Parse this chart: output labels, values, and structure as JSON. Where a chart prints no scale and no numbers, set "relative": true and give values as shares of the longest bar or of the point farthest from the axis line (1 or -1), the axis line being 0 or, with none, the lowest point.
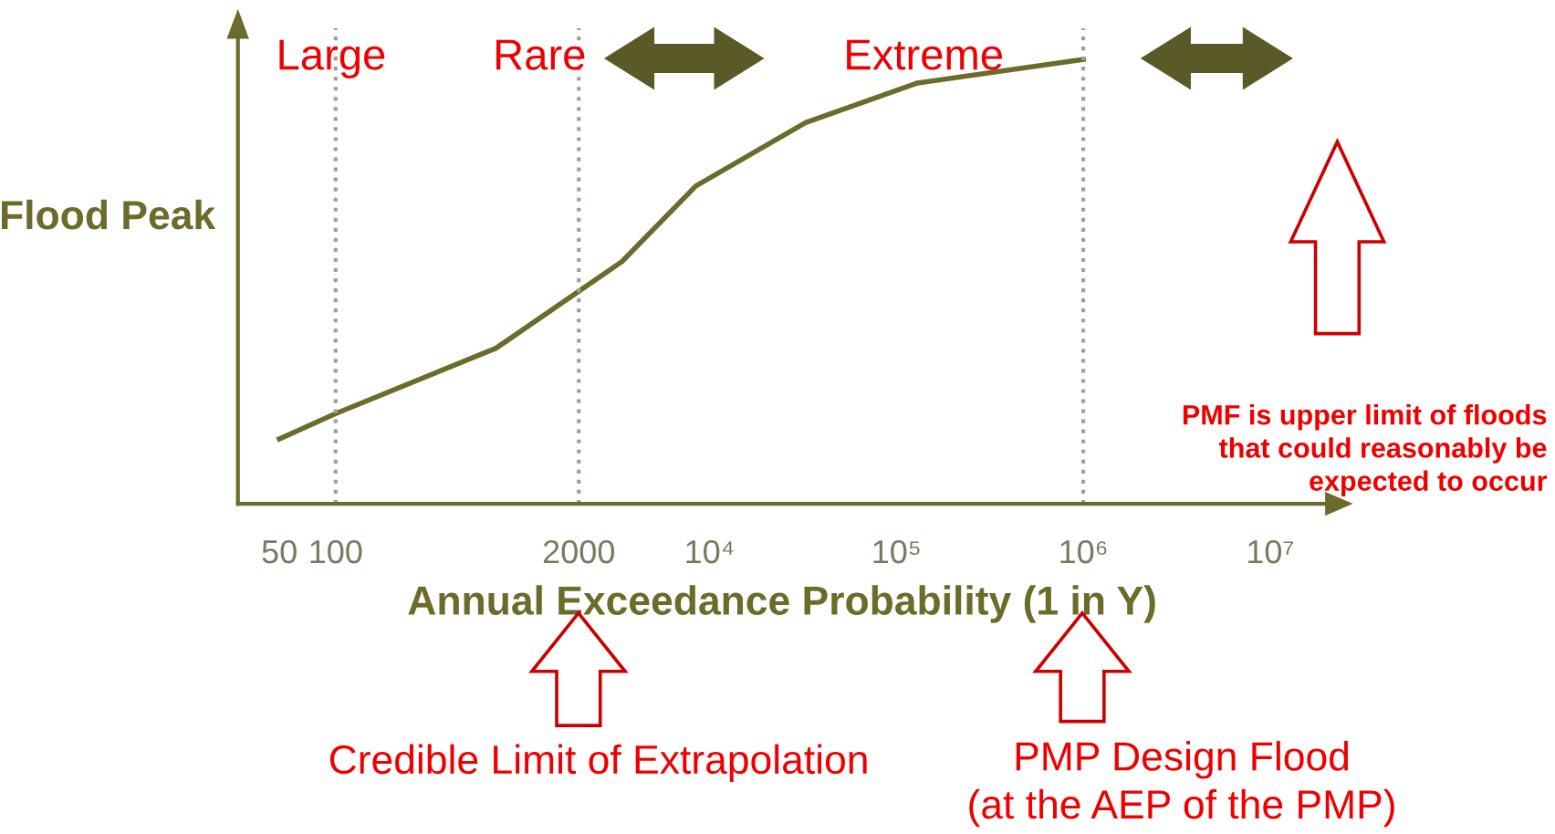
{
  "chart_data": {
    "type": "line",
    "relative": true,
    "xlabel": "Annual Exceedance Probability (1 in Y)",
    "ylabel": "Flood Peak",
    "x": [
      50,
      100,
      721,
      3400,
      8450,
      32700,
      130000,
      1000000
    ],
    "series": [
      {
        "color": "#6b6b2a",
        "values": [
          0.146,
          0.203,
          0.35,
          0.545,
          0.715,
          0.858,
          0.947,
          1.0
        ]
      }
    ],
    "log": "x",
    "xlim": [
      30,
      20000000
    ],
    "xticks": [
      50,
      100,
      2000,
      {
        "value": 10000,
        "label": "10⁴"
      },
      {
        "value": 100000,
        "label": "10⁵"
      },
      {
        "value": 1000000,
        "label": "10⁶"
      },
      {
        "value": 10000000,
        "label": "10⁷"
      }
    ],
    "ref_lines": [
      {
        "axis": "x",
        "value": 100,
        "line_style": "dotted",
        "color": "#a0a090"
      },
      {
        "axis": "x",
        "value": 2000,
        "line_style": "dotted",
        "color": "#a0a090"
      },
      {
        "axis": "x",
        "value": 1000000,
        "line_style": "dotted",
        "color": "#a0a090"
      }
    ],
    "annotations": [
      "Large",
      "Rare",
      "Extreme",
      "PMF is upper limit of floods\nthat could reasonably be\nexpected to occur",
      "Credible Limit of Extrapolation",
      "PMP Design Flood\n(at the AEP of the PMP)"
    ],
    "grid": false,
    "legend": false,
    "marker": "none",
    "line_style": "solid"
  }
}
